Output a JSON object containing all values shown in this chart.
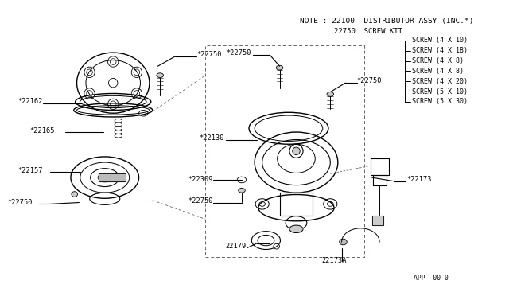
{
  "bg_color": "#ffffff",
  "line_color": "#000000",
  "text_color": "#000000",
  "title_note": "NOTE : 22100  DISTRIBUTOR ASSY (INC.*)",
  "screw_kit_label": "22750  SCREW KIT",
  "screw_items": [
    "SCREW (4 X 10)",
    "SCREW (4 X 18)",
    "SCREW (4 X 8)",
    "SCREW (4 X 8)",
    "SCREW (4 X 20)",
    "SCREW (5 X 10)",
    "SCREW (5 X 30)"
  ],
  "figsize": [
    6.4,
    3.72
  ],
  "dpi": 100
}
